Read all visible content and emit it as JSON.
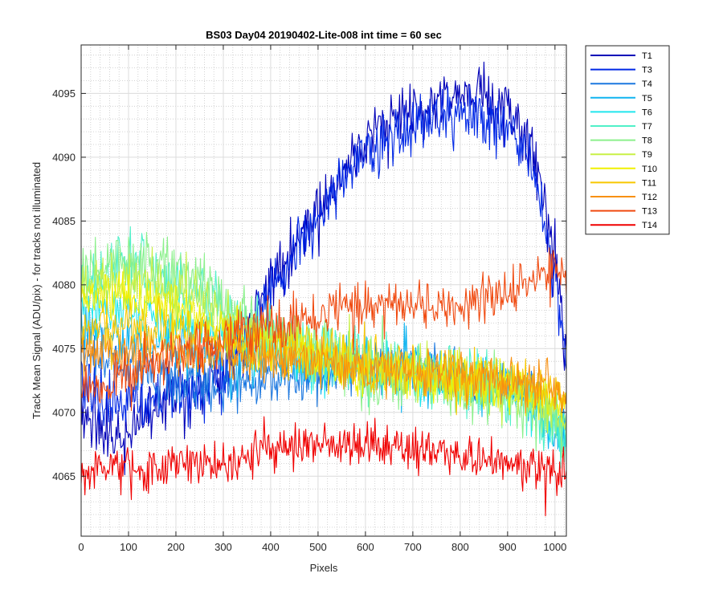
{
  "chart_data": {
    "type": "line",
    "title": "BS03 Day04 20190402-Lite-008 int time = 60 sec",
    "xlabel": "Pixels",
    "ylabel": "Track Mean Signal (ADU/pix) - for tracks not illuminated",
    "xlim": [
      0,
      1024
    ],
    "ylim": [
      4060.3,
      4098.8
    ],
    "xticks": [
      0,
      100,
      200,
      300,
      400,
      500,
      600,
      700,
      800,
      900,
      1000
    ],
    "yticks": [
      4065,
      4070,
      4075,
      4080,
      4085,
      4090,
      4095
    ],
    "grid": true,
    "minor_grid": true,
    "legend_position": "outside-top-right",
    "series": [
      {
        "name": "T1",
        "color": "#0000b8",
        "x": [
          0,
          50,
          100,
          150,
          200,
          250,
          300,
          350,
          400,
          450,
          500,
          550,
          600,
          650,
          700,
          750,
          800,
          850,
          900,
          950,
          1000,
          1024
        ],
        "y": [
          4070,
          4068.5,
          4068,
          4070,
          4071.5,
          4072,
          4073,
          4076,
          4080,
          4083,
          4086,
          4089,
          4091,
          4092.5,
          4093.5,
          4094.5,
          4095,
          4094.5,
          4093.5,
          4091,
          4083,
          4074
        ],
        "noise": 2.2
      },
      {
        "name": "T3",
        "color": "#0028e6",
        "x": [
          0,
          50,
          100,
          150,
          200,
          250,
          300,
          350,
          400,
          450,
          500,
          550,
          600,
          650,
          700,
          750,
          800,
          850,
          900,
          950,
          1000,
          1024
        ],
        "y": [
          4073,
          4071,
          4070.5,
          4071,
          4072,
          4072,
          4073,
          4076,
          4079.5,
          4082.5,
          4085.5,
          4088.5,
          4090.5,
          4091.5,
          4092.5,
          4093,
          4093.5,
          4093,
          4092,
          4089,
          4081,
          4073
        ],
        "noise": 2.2
      },
      {
        "name": "T4",
        "color": "#1c78e0",
        "x": [
          0,
          100,
          200,
          300,
          400,
          500,
          600,
          700,
          800,
          900,
          1000,
          1024
        ],
        "y": [
          4075,
          4073.5,
          4072.5,
          4072,
          4072.5,
          4073,
          4073.5,
          4073,
          4072.5,
          4072,
          4070,
          4069
        ],
        "noise": 1.8
      },
      {
        "name": "T5",
        "color": "#10b4f0",
        "x": [
          0,
          100,
          200,
          300,
          400,
          500,
          600,
          700,
          800,
          900,
          1000,
          1024
        ],
        "y": [
          4077,
          4076,
          4075,
          4074,
          4074,
          4074,
          4074,
          4073.5,
          4073,
          4072,
          4069,
          4068
        ],
        "noise": 1.8
      },
      {
        "name": "T6",
        "color": "#20e6ee",
        "x": [
          0,
          100,
          200,
          300,
          400,
          500,
          600,
          700,
          800,
          900,
          1000,
          1024
        ],
        "y": [
          4078,
          4078,
          4077,
          4076,
          4075,
          4074,
          4073.5,
          4073,
          4072.5,
          4072,
          4069,
          4068
        ],
        "noise": 1.8
      },
      {
        "name": "T7",
        "color": "#50f0c8",
        "x": [
          0,
          100,
          200,
          300,
          400,
          500,
          600,
          700,
          800,
          900,
          1000,
          1024
        ],
        "y": [
          4080,
          4081.5,
          4080,
          4078,
          4076,
          4074.5,
          4073.5,
          4073,
          4072.5,
          4071.5,
          4069,
          4068
        ],
        "noise": 2.3
      },
      {
        "name": "T8",
        "color": "#8cf08c",
        "x": [
          0,
          100,
          200,
          300,
          400,
          500,
          600,
          700,
          800,
          900,
          1000,
          1024
        ],
        "y": [
          4081,
          4082.5,
          4081,
          4078.5,
          4076,
          4074.5,
          4073,
          4072.5,
          4072,
          4071.5,
          4069.5,
          4068.5
        ],
        "noise": 2.3
      },
      {
        "name": "T9",
        "color": "#c8f046",
        "x": [
          0,
          100,
          200,
          300,
          400,
          500,
          600,
          700,
          800,
          900,
          1000,
          1024
        ],
        "y": [
          4080,
          4080.5,
          4079.5,
          4077.5,
          4076,
          4074.5,
          4073.5,
          4073,
          4072.5,
          4072,
          4070.5,
          4069.5
        ],
        "noise": 2.0
      },
      {
        "name": "T10",
        "color": "#f0f000",
        "x": [
          0,
          100,
          200,
          300,
          400,
          500,
          600,
          700,
          800,
          900,
          1000,
          1024
        ],
        "y": [
          4079,
          4079,
          4078,
          4076.5,
          4075.5,
          4074.5,
          4073.5,
          4073,
          4072.5,
          4072,
          4071,
          4070.5
        ],
        "noise": 1.8
      },
      {
        "name": "T11",
        "color": "#f8c800",
        "x": [
          0,
          100,
          200,
          300,
          400,
          500,
          600,
          700,
          800,
          900,
          1000,
          1024
        ],
        "y": [
          4077,
          4077,
          4076.5,
          4075.5,
          4075,
          4074.5,
          4074,
          4073.5,
          4073,
          4072.5,
          4071.5,
          4071
        ],
        "noise": 1.8
      },
      {
        "name": "T12",
        "color": "#f89010",
        "x": [
          0,
          100,
          200,
          300,
          400,
          500,
          600,
          700,
          800,
          900,
          1000,
          1024
        ],
        "y": [
          4075,
          4074.5,
          4074.5,
          4074.5,
          4074.5,
          4074,
          4073.5,
          4073,
          4073,
          4072.5,
          4071.5,
          4071
        ],
        "noise": 1.8
      },
      {
        "name": "T13",
        "color": "#f04a10",
        "x": [
          0,
          50,
          100,
          200,
          300,
          400,
          500,
          600,
          700,
          800,
          900,
          1000,
          1024
        ],
        "y": [
          4072,
          4071.5,
          4073,
          4074.5,
          4075.5,
          4076.5,
          4077.5,
          4078.5,
          4078.5,
          4078.5,
          4079.5,
          4081,
          4081
        ],
        "noise": 1.8
      },
      {
        "name": "T14",
        "color": "#f00000",
        "x": [
          0,
          100,
          200,
          300,
          400,
          500,
          600,
          700,
          800,
          900,
          1000,
          1024
        ],
        "y": [
          4065.5,
          4065.5,
          4066,
          4066,
          4067,
          4067.5,
          4067.5,
          4067,
          4066.5,
          4066,
          4065.5,
          4065.5
        ],
        "noise": 1.6
      }
    ]
  }
}
